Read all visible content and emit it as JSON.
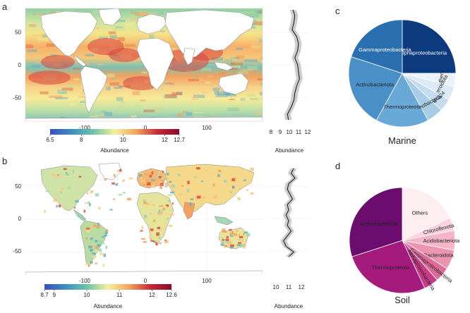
{
  "panels": {
    "a": "a",
    "b": "b",
    "c": "c",
    "d": "d"
  },
  "chart_data": [
    {
      "type": "heatmap",
      "panel": "a",
      "description": "Global marine abundance map",
      "x_ticks": [
        "-100",
        "0",
        "100"
      ],
      "y_ticks": [
        "50",
        "0",
        "-50"
      ],
      "colorbar": {
        "label": "Abundance",
        "ticks": [
          "6.5",
          "8",
          "10",
          "12",
          "12.7"
        ],
        "range": [
          6.5,
          12.7
        ],
        "colors": [
          "#3b4cc0",
          "#3f8fbf",
          "#6cc3a6",
          "#f5f1a0",
          "#f3a35c",
          "#c72a3a",
          "#8b0a2a"
        ]
      }
    },
    {
      "type": "line",
      "panel": "a-side",
      "xlabel": "Abundance",
      "x_ticks": [
        "8",
        "9",
        "10",
        "11",
        "12"
      ],
      "xlim": [
        8,
        12
      ],
      "ylim": [
        -80,
        80
      ],
      "latitude": [
        78,
        70,
        60,
        50,
        40,
        30,
        20,
        10,
        0,
        -10,
        -20,
        -30,
        -40,
        -50,
        -60,
        -70,
        -78
      ],
      "values": [
        10.4,
        10.6,
        10.5,
        10.3,
        10.8,
        11.0,
        10.9,
        10.6,
        10.9,
        11.0,
        11.1,
        10.8,
        10.6,
        10.5,
        10.2,
        9.8,
        9.9
      ]
    },
    {
      "type": "pie",
      "panel": "c",
      "title": "Marine",
      "slices": [
        {
          "label": "Alphaproteobacteria",
          "value": 25.0,
          "color": "#0b3a7e",
          "text_color": "#ffffff"
        },
        {
          "label": "Others",
          "value": 4.0,
          "color": "#eaf2fb",
          "text_color": "#222222"
        },
        {
          "label": "Bacteroidota",
          "value": 4.2,
          "color": "#dce9f6",
          "text_color": "#222222"
        },
        {
          "label": "SAR324",
          "value": 3.8,
          "color": "#c6dbef",
          "text_color": "#222222"
        },
        {
          "label": "Cyanobacteria",
          "value": 5.0,
          "color": "#a9cde6",
          "text_color": "#222222"
        },
        {
          "label": "Thermoproteota",
          "value": 16.0,
          "color": "#6aa8d8",
          "text_color": "#222222"
        },
        {
          "label": "Actinobacteriota",
          "value": 22.0,
          "color": "#4a90c8",
          "text_color": "#222222"
        },
        {
          "label": "Gammaproteobacteria",
          "value": 20.0,
          "color": "#2a6faf",
          "text_color": "#ffffff"
        }
      ]
    },
    {
      "type": "heatmap",
      "panel": "b",
      "description": "Global soil abundance map",
      "x_ticks": [
        "-100",
        "0",
        "100"
      ],
      "y_ticks": [
        "50",
        "0",
        "-50"
      ],
      "colorbar": {
        "label": "Abundance",
        "ticks": [
          "8.7",
          "9",
          "10",
          "11",
          "12",
          "12.6"
        ],
        "range": [
          8.7,
          12.6
        ],
        "colors": [
          "#3b4cc0",
          "#3f8fbf",
          "#6cc3a6",
          "#f5f1a0",
          "#f3a35c",
          "#c72a3a",
          "#8b0a2a"
        ]
      }
    },
    {
      "type": "line",
      "panel": "b-side",
      "xlabel": "Abundance",
      "x_ticks": [
        "10",
        "11",
        "12"
      ],
      "xlim": [
        9.5,
        12.5
      ],
      "ylim": [
        -80,
        80
      ],
      "latitude": [
        72,
        65,
        58,
        50,
        42,
        35,
        28,
        20,
        12,
        5,
        -3,
        -10,
        -18,
        -25,
        -32,
        -40,
        -48,
        -55
      ],
      "values": [
        11.4,
        11.2,
        11.5,
        11.0,
        10.9,
        11.1,
        11.3,
        10.9,
        11.0,
        10.8,
        11.0,
        10.9,
        11.2,
        10.9,
        10.6,
        10.8,
        11.4,
        11.0
      ]
    },
    {
      "type": "pie",
      "panel": "d",
      "title": "Soil",
      "slices": [
        {
          "label": "Others",
          "value": 18.0,
          "color": "#fdeef2",
          "text_color": "#222222"
        },
        {
          "label": "Chloroflexota",
          "value": 4.0,
          "color": "#f9d4de",
          "text_color": "#222222"
        },
        {
          "label": "Acidobacteriota",
          "value": 6.0,
          "color": "#f4b6c8",
          "text_color": "#222222"
        },
        {
          "label": "Bacteroidota",
          "value": 6.0,
          "color": "#ec95b0",
          "text_color": "#222222"
        },
        {
          "label": "Gammaproteobacteria",
          "value": 4.5,
          "color": "#df6a98",
          "text_color": "#222222"
        },
        {
          "label": "Alphaproteobacteria",
          "value": 4.5,
          "color": "#c93b86",
          "text_color": "#222222"
        },
        {
          "label": "Thermoproteota",
          "value": 27.0,
          "color": "#a51a7d",
          "text_color": "#222222"
        },
        {
          "label": "Actinobacteriota",
          "value": 30.0,
          "color": "#6b0c6e",
          "text_color": "#222222"
        }
      ]
    }
  ]
}
